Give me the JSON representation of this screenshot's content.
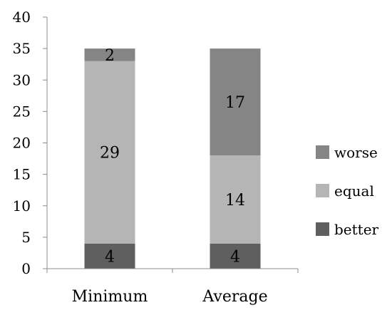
{
  "chart_data": {
    "type": "bar",
    "stacked": true,
    "categories": [
      "Minimum",
      "Average"
    ],
    "series": [
      {
        "name": "better",
        "values": [
          4,
          4
        ],
        "color": "#5f5f5f"
      },
      {
        "name": "equal",
        "values": [
          29,
          14
        ],
        "color": "#b5b5b5"
      },
      {
        "name": "worse",
        "values": [
          2,
          17
        ],
        "color": "#858585"
      }
    ],
    "ylim": [
      0,
      40
    ],
    "yticks": [
      0,
      5,
      10,
      15,
      20,
      25,
      30,
      35,
      40
    ],
    "grid": false,
    "legend_position": "right",
    "title": "",
    "xlabel": "",
    "ylabel": ""
  }
}
